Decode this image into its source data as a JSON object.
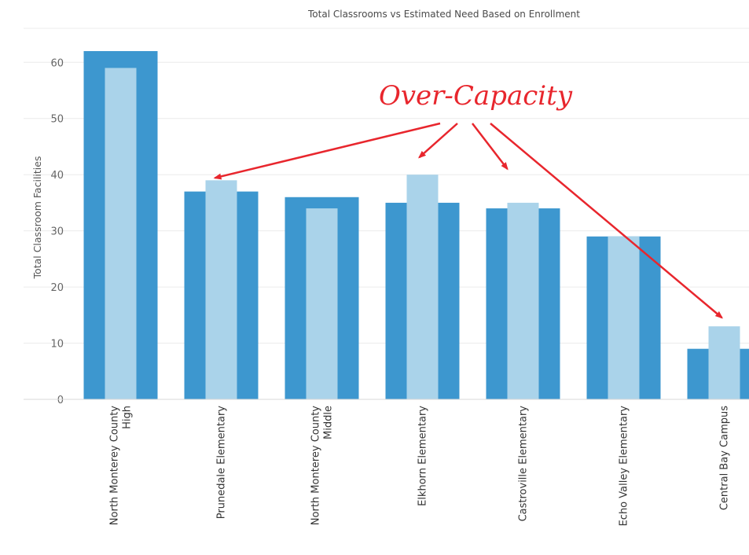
{
  "chart_data": {
    "type": "bar",
    "title": "Total Classrooms vs Estimated Need Based on Enrollment",
    "xlabel": "",
    "ylabel": "Total Classroom Facilities",
    "ylim": [
      0,
      62
    ],
    "yticks": [
      0,
      10,
      20,
      30,
      40,
      50,
      60
    ],
    "categories": [
      [
        "North Monterey County",
        "High"
      ],
      [
        "Prunedale Elementary"
      ],
      [
        "North Monterey County",
        "Middle"
      ],
      [
        "Elkhorn Elementary"
      ],
      [
        "Castroville Elementary"
      ],
      [
        "Echo Valley Elementary"
      ],
      [
        "Central Bay Campus"
      ]
    ],
    "series": [
      {
        "values": [
          62,
          37,
          36,
          35,
          34,
          29,
          9
        ],
        "color": "#3d97cf"
      },
      {
        "values": [
          59,
          39,
          34,
          40,
          35,
          29,
          13
        ],
        "color": "#aad3ea"
      }
    ],
    "grid": true,
    "annotation": {
      "text": "Over-Capacity",
      "color": "#e8262d",
      "targets": [
        "Prunedale Elementary",
        "Elkhorn Elementary",
        "Castroville Elementary",
        "Central Bay Campus"
      ]
    }
  }
}
